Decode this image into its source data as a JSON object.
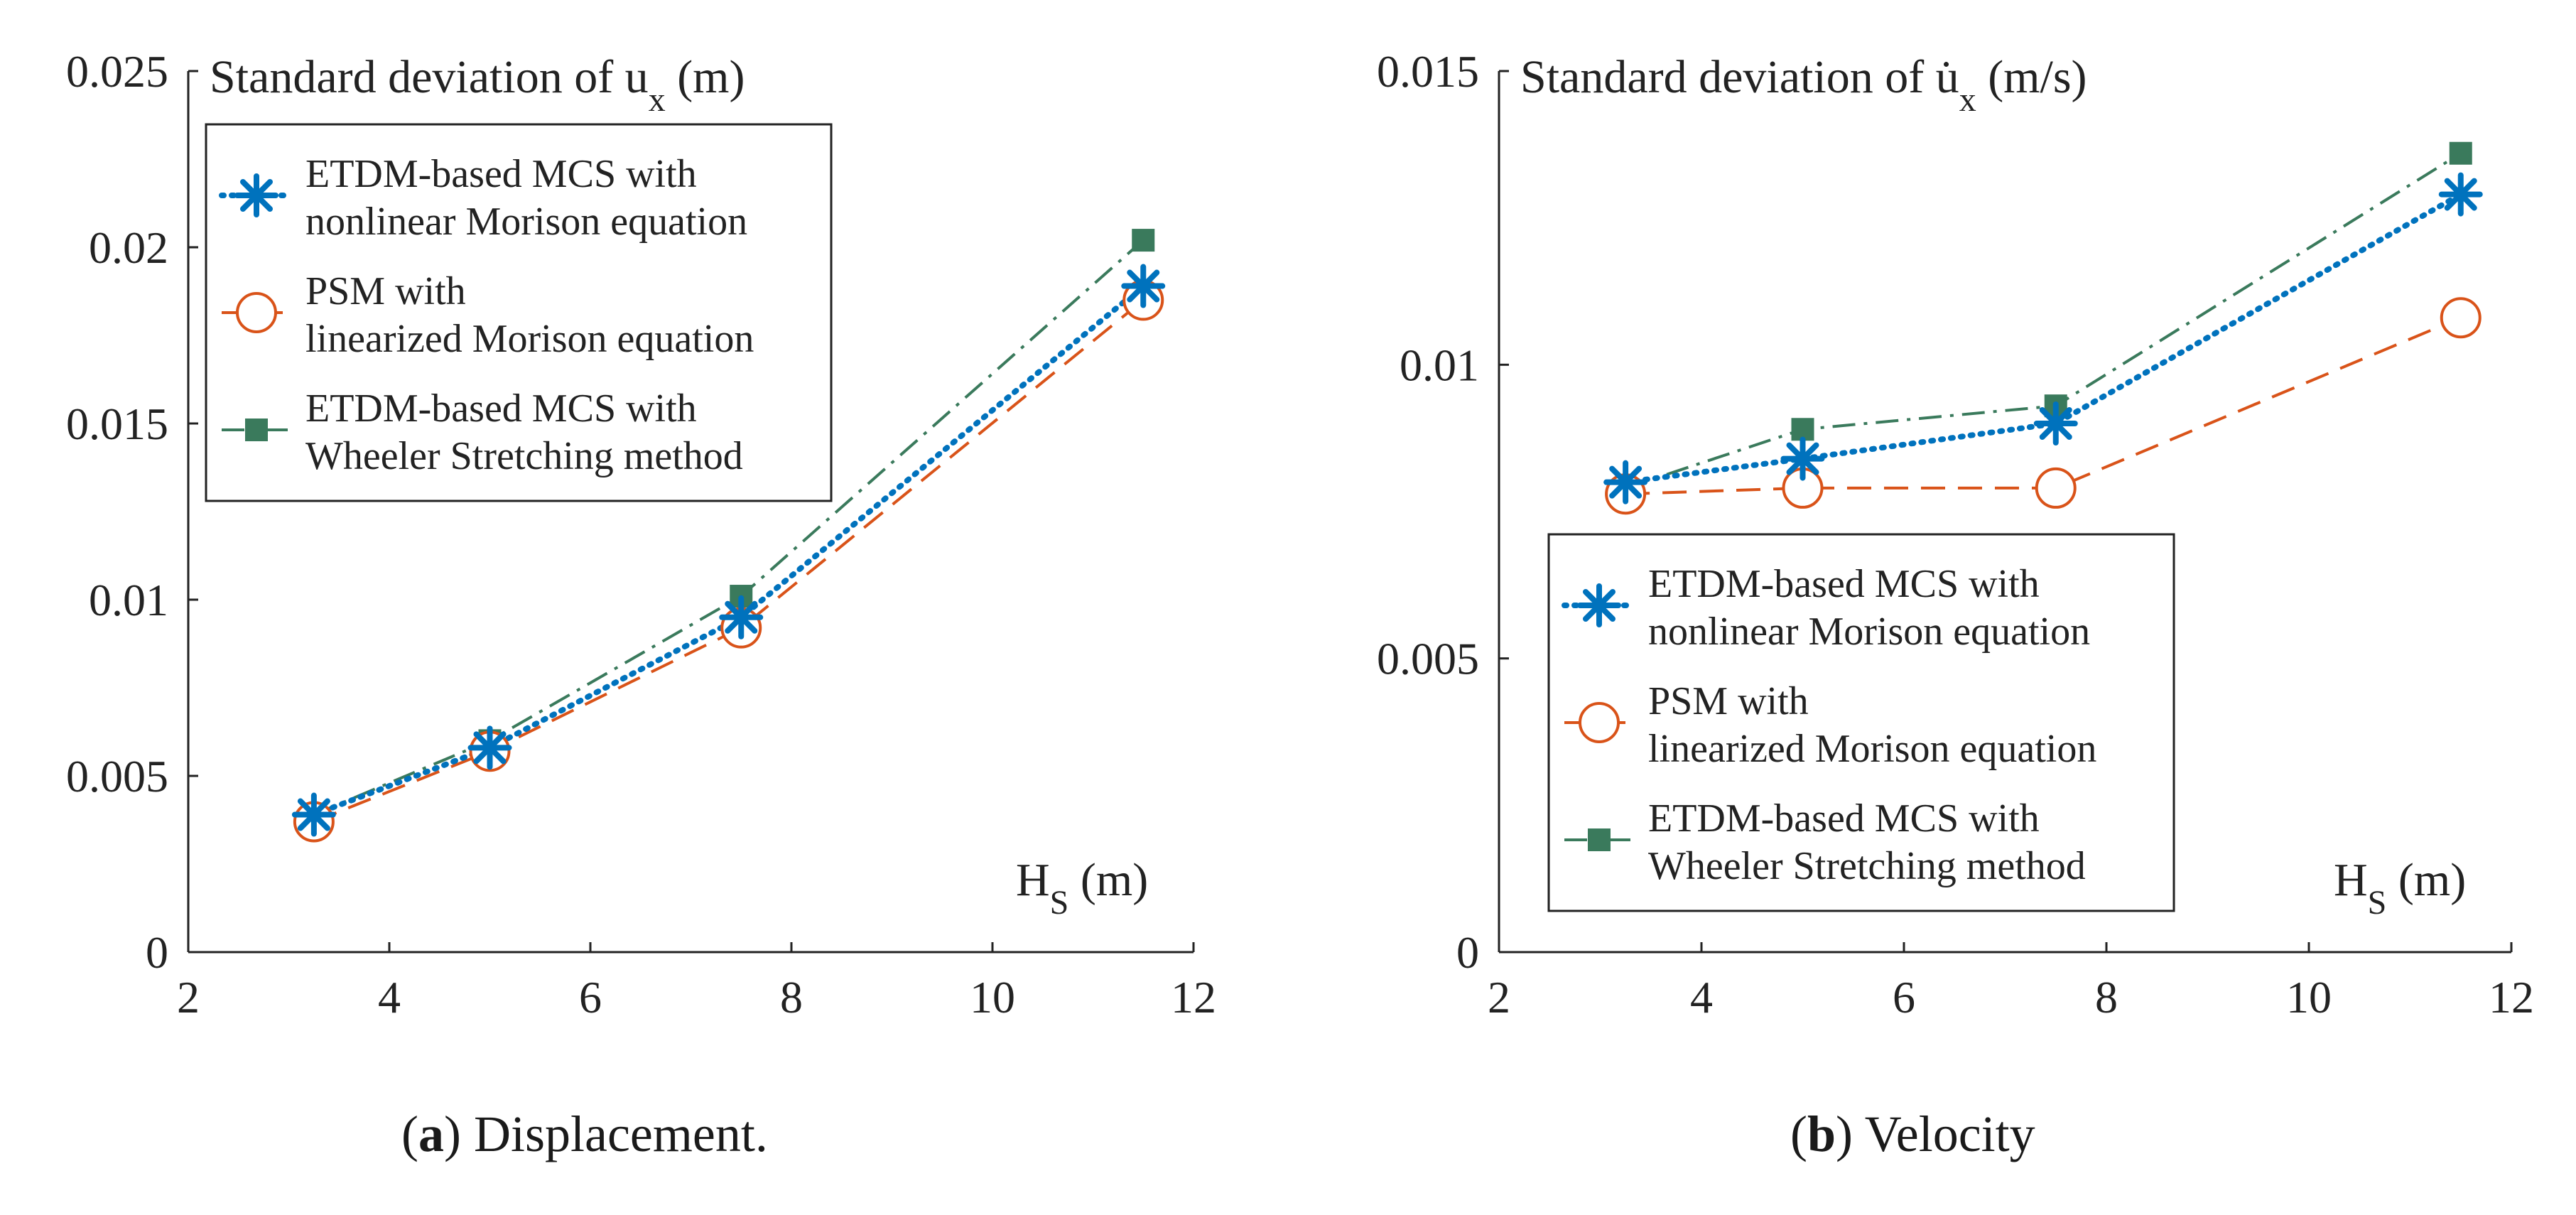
{
  "chart_data": [
    {
      "type": "line",
      "title_prefix": "Standard deviation of u",
      "title_sub": "x",
      "title_suffix": " (m)",
      "xlabel_main": "H",
      "xlabel_sub": "S",
      "xlabel_unit": " (m)",
      "xlim": [
        2,
        12
      ],
      "ylim": [
        0,
        0.025
      ],
      "xticks": [
        2,
        4,
        6,
        8,
        10,
        12
      ],
      "yticks": [
        0,
        0.005,
        0.01,
        0.015,
        0.02,
        0.025
      ],
      "xtick_labels": [
        "2",
        "4",
        "6",
        "8",
        "10",
        "12"
      ],
      "ytick_labels": [
        "0",
        "0.005",
        "0.01",
        "0.015",
        "0.02",
        "0.025"
      ],
      "grid": false,
      "legend_position": "top-left",
      "series": [
        {
          "name_line1": "ETDM-based MCS with",
          "name_line2": "nonlinear Morison equation",
          "color": "#0072BD",
          "style": "dotted",
          "marker": "asterisk",
          "x": [
            3.25,
            5,
            7.5,
            11.5
          ],
          "values": [
            0.0039,
            0.0058,
            0.0095,
            0.0189
          ]
        },
        {
          "name_line1": "PSM with",
          "name_line2": "linearized Morison equation",
          "color": "#D95319",
          "style": "dashed",
          "marker": "circle",
          "x": [
            3.25,
            5,
            7.5,
            11.5
          ],
          "values": [
            0.0037,
            0.0057,
            0.0092,
            0.0185
          ]
        },
        {
          "name_line1": "ETDM-based MCS with",
          "name_line2": "Wheeler Stretching method",
          "color": "#3A7A5C",
          "style": "dashdot",
          "marker": "square",
          "x": [
            3.25,
            5,
            7.5,
            11.5
          ],
          "values": [
            0.0039,
            0.006,
            0.0101,
            0.0202
          ]
        }
      ],
      "caption_letter": "a",
      "caption_text": " Displacement."
    },
    {
      "type": "line",
      "title_prefix": "Standard deviation of u̇",
      "title_sub": "x",
      "title_suffix": " (m/s)",
      "xlabel_main": "H",
      "xlabel_sub": "S",
      "xlabel_unit": " (m)",
      "xlim": [
        2,
        12
      ],
      "ylim": [
        0,
        0.015
      ],
      "xticks": [
        2,
        4,
        6,
        8,
        10,
        12
      ],
      "yticks": [
        0,
        0.005,
        0.01,
        0.015
      ],
      "xtick_labels": [
        "2",
        "4",
        "6",
        "8",
        "10",
        "12"
      ],
      "ytick_labels": [
        "0",
        "0.005",
        "0.01",
        "0.015"
      ],
      "grid": false,
      "legend_position": "bottom-left",
      "series": [
        {
          "name_line1": "ETDM-based MCS with",
          "name_line2": "nonlinear Morison equation",
          "color": "#0072BD",
          "style": "dotted",
          "marker": "asterisk",
          "x": [
            3.25,
            5,
            7.5,
            11.5
          ],
          "values": [
            0.008,
            0.0084,
            0.009,
            0.0129
          ]
        },
        {
          "name_line1": "PSM with",
          "name_line2": "linearized Morison equation",
          "color": "#D95319",
          "style": "dashed",
          "marker": "circle",
          "x": [
            3.25,
            5,
            7.5,
            11.5
          ],
          "values": [
            0.0078,
            0.0079,
            0.0079,
            0.0108
          ]
        },
        {
          "name_line1": "ETDM-based MCS with",
          "name_line2": "Wheeler Stretching method",
          "color": "#3A7A5C",
          "style": "dashdot",
          "marker": "square",
          "x": [
            3.25,
            5,
            7.5,
            11.5
          ],
          "values": [
            0.0079,
            0.0089,
            0.0093,
            0.0136
          ]
        }
      ],
      "caption_letter": "b",
      "caption_text": " Velocity"
    }
  ]
}
